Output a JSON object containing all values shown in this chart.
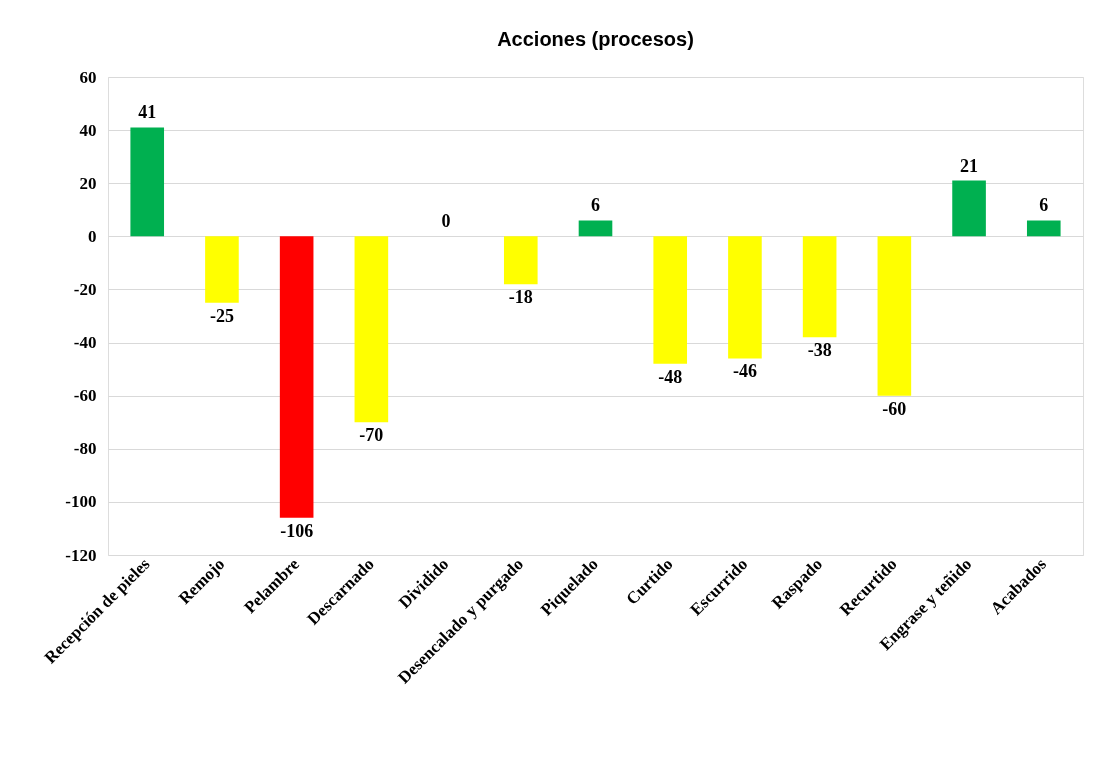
{
  "chart_data": {
    "type": "bar",
    "title": "Acciones (procesos)",
    "categories": [
      "Recepción de pieles",
      "Remojo",
      "Pelambre",
      "Descarnado",
      "Dividido",
      "Desencalado y purgado",
      "Piquelado",
      "Curtido",
      "Escurrido",
      "Raspado",
      "Recurtido",
      "Engrase y teñido",
      "Acabados"
    ],
    "values": [
      41,
      -25,
      -106,
      -70,
      0,
      -18,
      6,
      -48,
      -46,
      -38,
      -60,
      21,
      6
    ],
    "colors": [
      "#00b050",
      "#ffff00",
      "#ff0000",
      "#ffff00",
      "#ffff00",
      "#ffff00",
      "#00b050",
      "#ffff00",
      "#ffff00",
      "#ffff00",
      "#ffff00",
      "#00b050",
      "#00b050"
    ],
    "ylim": [
      -120,
      60
    ],
    "yticks": [
      -120,
      -100,
      -80,
      -60,
      -40,
      -20,
      0,
      20,
      40,
      60
    ],
    "grid": "y",
    "data_labels": true
  }
}
